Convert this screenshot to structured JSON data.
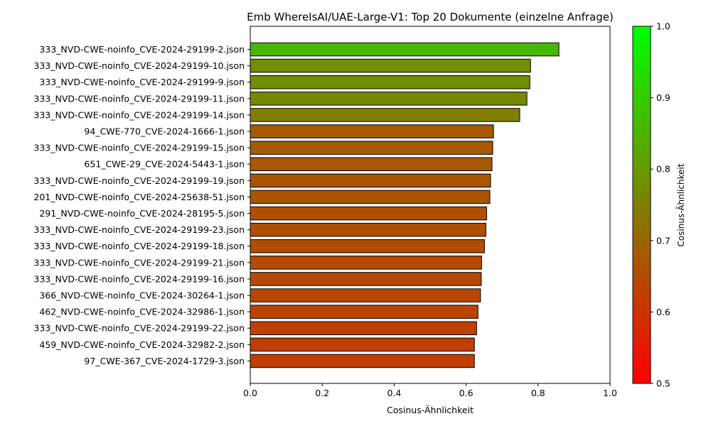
{
  "chart_data": {
    "type": "bar",
    "orientation": "horizontal",
    "title": "Emb WhereIsAI/UAE-Large-V1: Top 20 Dokumente (einzelne Anfrage)",
    "xlabel": "Cosinus-Ähnlichkeit",
    "ylabel": "",
    "xlim": [
      0.0,
      1.0
    ],
    "xticks": [
      "0.0",
      "0.2",
      "0.4",
      "0.6",
      "0.8",
      "1.0"
    ],
    "grid": false,
    "categories": [
      "333_NVD-CWE-noinfo_CVE-2024-29199-2.json",
      "333_NVD-CWE-noinfo_CVE-2024-29199-10.json",
      "333_NVD-CWE-noinfo_CVE-2024-29199-9.json",
      "333_NVD-CWE-noinfo_CVE-2024-29199-11.json",
      "333_NVD-CWE-noinfo_CVE-2024-29199-14.json",
      "94_CWE-770_CVE-2024-1666-1.json",
      "333_NVD-CWE-noinfo_CVE-2024-29199-15.json",
      "651_CWE-29_CVE-2024-5443-1.json",
      "333_NVD-CWE-noinfo_CVE-2024-29199-19.json",
      "201_NVD-CWE-noinfo_CVE-2024-25638-51.json",
      "291_NVD-CWE-noinfo_CVE-2024-28195-5.json",
      "333_NVD-CWE-noinfo_CVE-2024-29199-23.json",
      "333_NVD-CWE-noinfo_CVE-2024-29199-18.json",
      "333_NVD-CWE-noinfo_CVE-2024-29199-21.json",
      "333_NVD-CWE-noinfo_CVE-2024-29199-16.json",
      "366_NVD-CWE-noinfo_CVE-2024-30264-1.json",
      "462_NVD-CWE-noinfo_CVE-2024-32986-1.json",
      "333_NVD-CWE-noinfo_CVE-2024-29199-22.json",
      "459_NVD-CWE-noinfo_CVE-2024-32982-2.json",
      "97_CWE-367_CVE-2024-1729-3.json"
    ],
    "values": [
      0.858,
      0.779,
      0.777,
      0.769,
      0.749,
      0.676,
      0.674,
      0.672,
      0.668,
      0.666,
      0.657,
      0.655,
      0.651,
      0.643,
      0.642,
      0.64,
      0.633,
      0.629,
      0.623,
      0.623
    ],
    "bar_edge_color": "#000000",
    "colorbar": {
      "label": "Cosinus-Ähnlichkeit",
      "range": [
        0.5,
        1.0
      ],
      "ticks": [
        "0.5",
        "0.6",
        "0.7",
        "0.8",
        "0.9",
        "1.0"
      ],
      "color_low": "#ff0000",
      "color_high": "#00ff00"
    }
  }
}
